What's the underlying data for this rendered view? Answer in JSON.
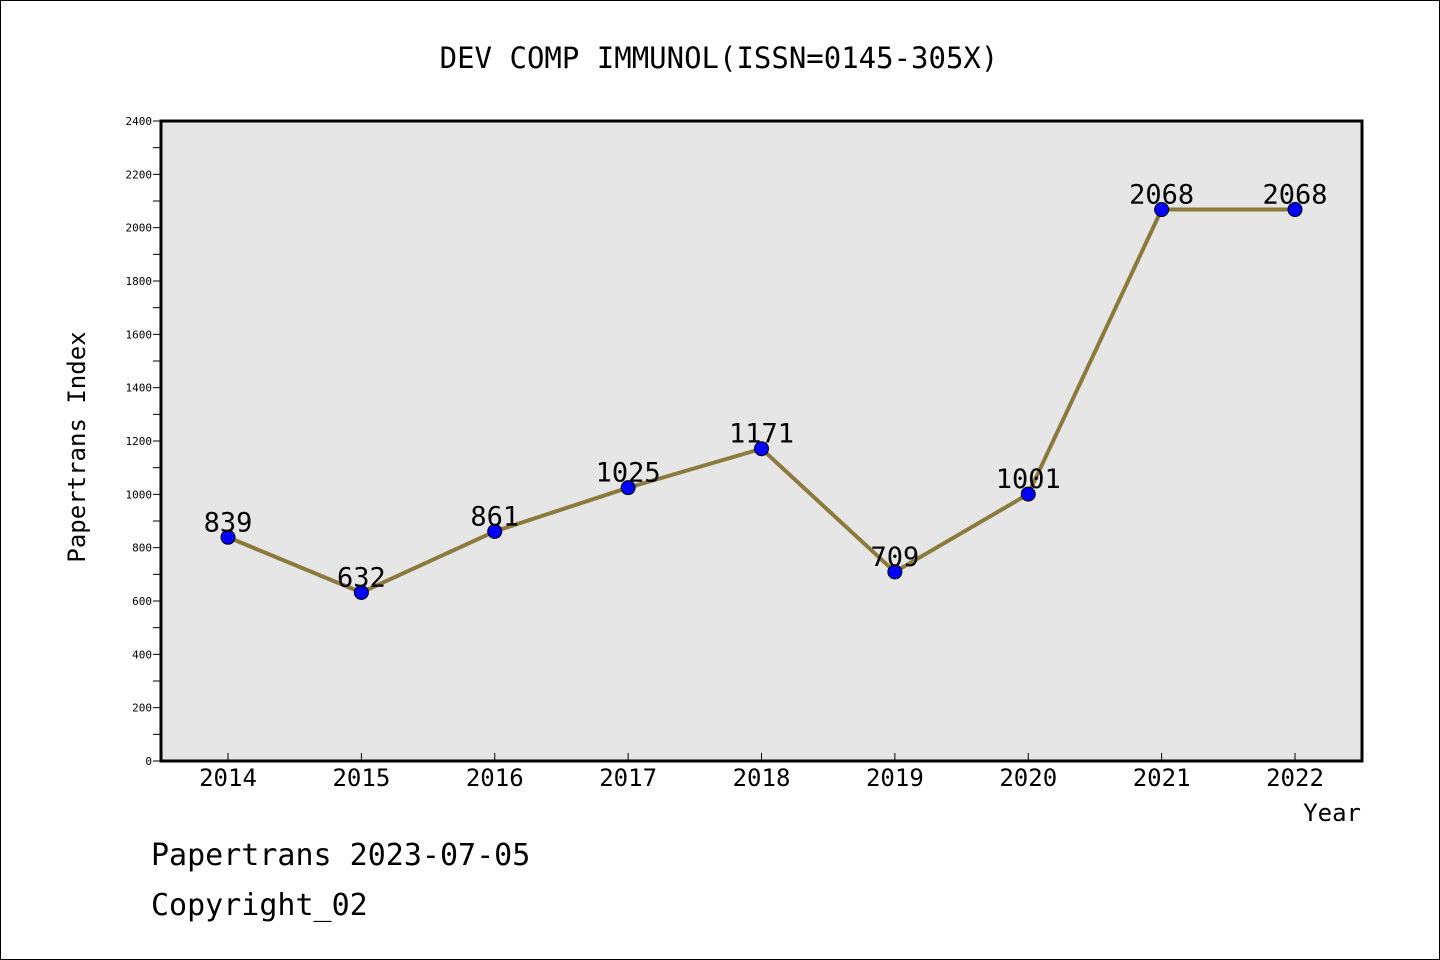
{
  "chart_data": {
    "type": "line",
    "title": "DEV COMP IMMUNOL(ISSN=0145-305X)",
    "xlabel": "Year",
    "ylabel": "Papertrans Index",
    "categories": [
      "2014",
      "2015",
      "2016",
      "2017",
      "2018",
      "2019",
      "2020",
      "2021",
      "2022"
    ],
    "series": [
      {
        "values": [
          839,
          632,
          861,
          1025,
          1171,
          709,
          1001,
          2068,
          2068
        ]
      }
    ],
    "data_labels": [
      "839",
      "632",
      "861",
      "1025",
      "1171",
      "709",
      "1001",
      "2068",
      "2068"
    ],
    "ylim": [
      0,
      2400
    ],
    "yticks": [
      0,
      200,
      400,
      600,
      800,
      1000,
      1200,
      1400,
      1600,
      1800,
      2000,
      2200,
      2400
    ],
    "grid": false,
    "legend": "none",
    "colors": {
      "line": "#8c7a3c",
      "marker": "#0000ff",
      "plot_background": "#e6e6e6"
    }
  },
  "footer": {
    "line1": "Papertrans 2023-07-05",
    "line2": "Copyright_02"
  }
}
